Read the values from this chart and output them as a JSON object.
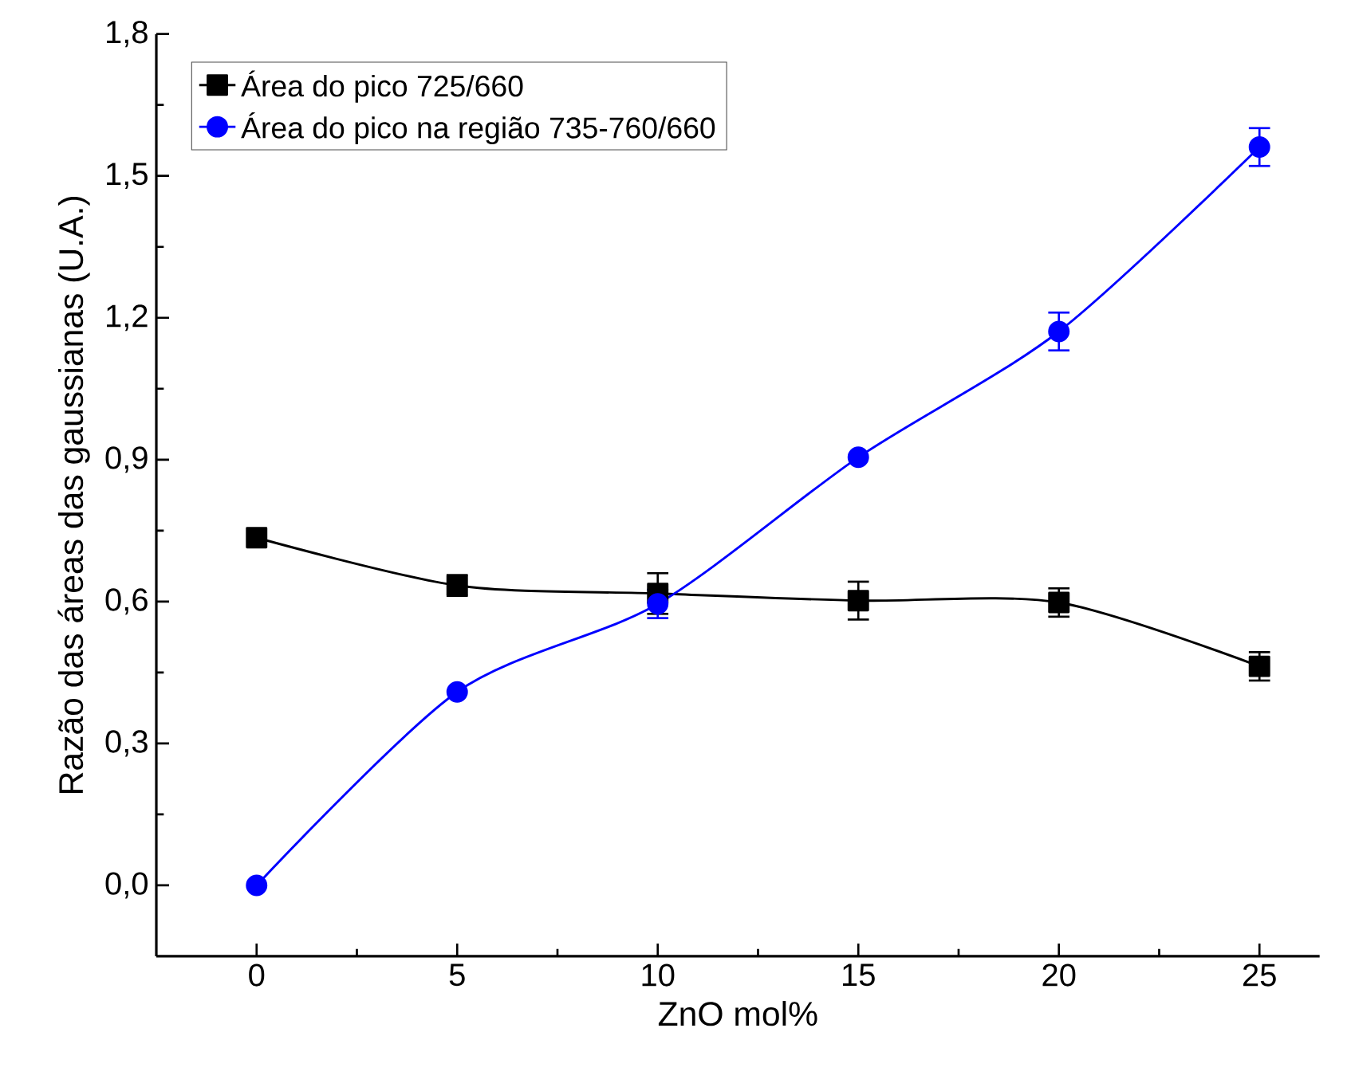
{
  "chart_data": {
    "type": "line",
    "xlabel": "ZnO mol%",
    "ylabel": "Razão das áreas das gaussianas (U.A.)",
    "x": [
      0,
      5,
      10,
      15,
      20,
      25
    ],
    "series": [
      {
        "name": "Área do pico 725/660",
        "color": "#000000",
        "marker": "square",
        "values": [
          0.735,
          0.634,
          0.617,
          0.602,
          0.598,
          0.463
        ],
        "errors": [
          null,
          0.022,
          0.043,
          0.04,
          0.03,
          0.03
        ]
      },
      {
        "name": "Área do pico na região 735-760/660",
        "color": "#0000ff",
        "marker": "circle",
        "values": [
          0.0,
          0.409,
          0.595,
          0.905,
          1.171,
          1.561
        ],
        "errors": [
          null,
          null,
          0.03,
          null,
          0.04,
          0.04
        ]
      }
    ],
    "xlim": [
      -2.5,
      26.5
    ],
    "ylim": [
      -0.15,
      1.8
    ],
    "xticks": [
      0,
      5,
      10,
      15,
      20,
      25
    ],
    "yticks": [
      {
        "value": 0,
        "label": "0,0"
      },
      {
        "value": 0.3,
        "label": "0,3"
      },
      {
        "value": 0.6,
        "label": "0,6"
      },
      {
        "value": 0.9,
        "label": "0,9"
      },
      {
        "value": 1.2,
        "label": "1,2"
      },
      {
        "value": 1.5,
        "label": "1,5"
      },
      {
        "value": 1.8,
        "label": "1,8"
      }
    ],
    "legend": "top left",
    "grid": false
  }
}
